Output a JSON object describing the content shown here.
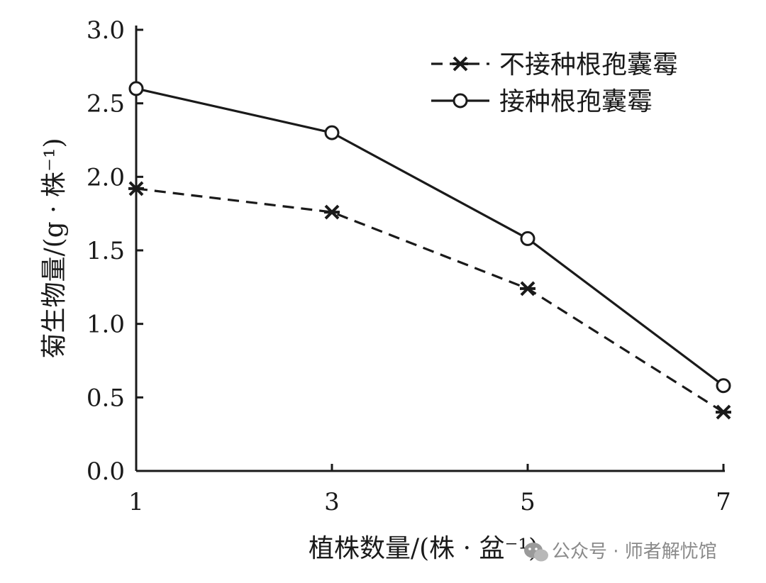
{
  "chart_data": {
    "type": "line",
    "title": "",
    "xlabel": "植株数量/(株 · 盆⁻¹)",
    "ylabel": "菊生物量/(g · 株⁻¹)",
    "x": [
      1,
      3,
      5,
      7
    ],
    "x_tick_labels": [
      "1",
      "3",
      "5",
      "7"
    ],
    "ylim": [
      0.0,
      3.0
    ],
    "y_tick_labels": [
      "0.0",
      "0.5",
      "1.0",
      "1.5",
      "2.0",
      "2.5",
      "3.0"
    ],
    "grid": false,
    "legend_position": "top-right",
    "series": [
      {
        "name": "不接种根孢囊霉",
        "values": [
          1.92,
          1.76,
          1.24,
          0.4
        ],
        "line_style": "dashed",
        "marker": "asterisk",
        "color": "#1a1a1a"
      },
      {
        "name": "接种根孢囊霉",
        "values": [
          2.6,
          2.3,
          1.58,
          0.58
        ],
        "line_style": "solid",
        "marker": "open-circle",
        "color": "#1a1a1a"
      }
    ]
  },
  "watermark": {
    "text": "公众号 · 师者解忧馆",
    "icon": "wechat-icon"
  }
}
